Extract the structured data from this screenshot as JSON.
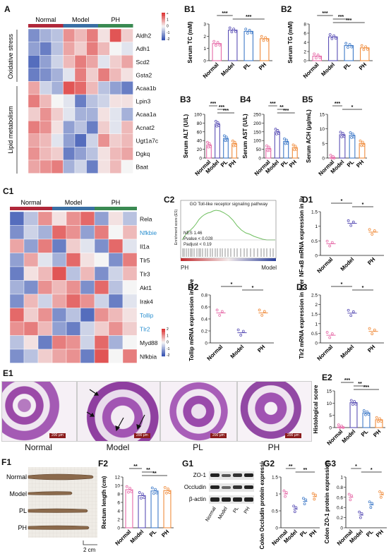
{
  "panels": {
    "A": "A",
    "B1": "B1",
    "B2": "B2",
    "B3": "B3",
    "B4": "B4",
    "B5": "B5",
    "C1": "C1",
    "C2": "C2",
    "D1": "D1",
    "D2": "D2",
    "D3": "D3",
    "E1": "E1",
    "E2": "E2",
    "F1": "F1",
    "F2": "F2",
    "G1": "G1",
    "G2": "G2",
    "G3": "G3"
  },
  "groups3": [
    "Normal",
    "Model",
    "PH"
  ],
  "groups4": [
    "Normal",
    "Model",
    "PL",
    "PH"
  ],
  "heatmapA": {
    "genes": [
      "Aldh2",
      "Adh1",
      "Scd2",
      "Gsta2",
      "Acaa1b",
      "Lpin3",
      "Acaa1a",
      "Acnat2",
      "Ugt1a7c",
      "Dgkq",
      "Baat"
    ],
    "row_groups": [
      "Oxidative stress",
      "Lipid metabolism"
    ],
    "legend": [
      "2",
      "1",
      "0",
      "-1",
      "-2"
    ],
    "values": [
      [
        -1.2,
        -0.8,
        -0.6,
        1.0,
        0.6,
        1.2,
        0.2,
        1.6,
        0.4
      ],
      [
        -1.0,
        -1.4,
        -0.6,
        0.8,
        0.4,
        1.2,
        0.6,
        0.0,
        -0.2
      ],
      [
        -1.6,
        -1.0,
        -0.4,
        0.6,
        1.2,
        0.8,
        -0.2,
        0.4,
        0.8
      ],
      [
        -1.4,
        -1.2,
        -0.8,
        -0.2,
        1.2,
        0.4,
        1.2,
        0.6,
        0.2
      ],
      [
        0.8,
        -0.4,
        -0.8,
        1.6,
        1.4,
        0.6,
        -0.6,
        -1.0,
        -1.4
      ],
      [
        1.2,
        0.6,
        0.0,
        -0.2,
        -1.4,
        -0.6,
        -0.4,
        0.2,
        0.2
      ],
      [
        0.4,
        1.0,
        0.4,
        -0.2,
        -0.8,
        -0.8,
        0.2,
        -0.2,
        -0.8
      ],
      [
        1.2,
        1.0,
        0.2,
        -1.0,
        -0.6,
        -1.4,
        0.4,
        -0.2,
        0.6
      ],
      [
        0.8,
        0.6,
        -0.2,
        -1.0,
        -1.6,
        -0.4,
        1.0,
        0.4,
        0.6
      ],
      [
        1.0,
        0.6,
        0.4,
        -1.4,
        -1.0,
        -0.6,
        0.2,
        0.6,
        0.8
      ],
      [
        0.8,
        1.0,
        1.2,
        -0.8,
        -0.4,
        -1.4,
        0.2,
        0.6,
        0.0
      ]
    ]
  },
  "heatmapC": {
    "genes": [
      "Rela",
      "Nfkbie",
      "Il1a",
      "Tlr5",
      "Tlr3",
      "Akt1",
      "Irak4",
      "Tollip",
      "Tlr2",
      "Myd88",
      "Nfkbia"
    ],
    "highlight": [
      "Nfkbie",
      "Tollip",
      "Tlr2"
    ],
    "legend": [
      "2",
      "1",
      "0",
      "-1",
      "-2"
    ],
    "values": [
      [
        -1.6,
        -0.6,
        1.0,
        0.2,
        1.0,
        1.4,
        -1.0,
        0.2,
        -0.6
      ],
      [
        -1.2,
        -0.4,
        -0.8,
        1.4,
        1.0,
        -1.0,
        1.2,
        0.0,
        0.6
      ],
      [
        0.8,
        -1.0,
        1.2,
        -1.4,
        0.4,
        -0.2,
        -1.2,
        1.4,
        -0.2
      ],
      [
        -1.0,
        0.8,
        -0.2,
        -0.8,
        1.4,
        0.2,
        0.0,
        -1.2,
        1.2
      ],
      [
        -1.4,
        0.2,
        0.6,
        1.6,
        -0.6,
        0.6,
        -1.2,
        -0.4,
        0.6
      ],
      [
        -0.8,
        -1.2,
        1.0,
        0.6,
        1.0,
        -1.2,
        1.4,
        -0.6,
        0.0
      ],
      [
        -1.2,
        0.6,
        -0.4,
        0.8,
        1.4,
        1.0,
        -0.4,
        -1.4,
        -0.2
      ],
      [
        1.4,
        0.4,
        1.0,
        -1.2,
        -0.6,
        -1.6,
        1.0,
        0.6,
        0.2
      ],
      [
        1.0,
        1.2,
        0.6,
        -1.0,
        -1.4,
        -0.4,
        0.4,
        1.0,
        0.4
      ],
      [
        -0.6,
        0.2,
        -1.4,
        1.2,
        1.0,
        -0.4,
        1.4,
        -0.8,
        0.0
      ],
      [
        -1.2,
        -0.6,
        0.4,
        0.8,
        1.0,
        -1.4,
        1.6,
        0.0,
        1.2
      ]
    ]
  },
  "gsea": {
    "title": "GO Toll-like receptor signaling pathway",
    "ylabel": "Enrichment score (ES)",
    "nes": "NES 1.46",
    "pvalue": "Pvalue < 0.028",
    "padjust": "Padjust < 0.19",
    "left": "PH",
    "right": "Model"
  },
  "chart_data": [
    {
      "id": "B1",
      "type": "bar",
      "ylabel": "Serum TC (mM)",
      "categories": [
        "Normal",
        "Model",
        "PL",
        "PH"
      ],
      "values": [
        1.4,
        2.5,
        2.4,
        1.8
      ],
      "ylim": [
        0,
        3
      ],
      "ticks": [
        0,
        1,
        2,
        3
      ],
      "sig": [
        {
          "a": 0,
          "b": 1,
          "t": "***"
        },
        {
          "a": 1,
          "b": 3,
          "t": "***"
        }
      ]
    },
    {
      "id": "B2",
      "type": "bar",
      "ylabel": "Serum TG (mM)",
      "categories": [
        "Normal",
        "Model",
        "PL",
        "PH"
      ],
      "values": [
        1.0,
        5.2,
        3.3,
        2.8
      ],
      "ylim": [
        0,
        8
      ],
      "ticks": [
        0,
        2,
        4,
        6,
        8
      ],
      "sig": [
        {
          "a": 0,
          "b": 1,
          "t": "***"
        },
        {
          "a": 1,
          "b": 2,
          "t": "***"
        },
        {
          "a": 1,
          "b": 3,
          "t": "***"
        }
      ]
    },
    {
      "id": "B3",
      "type": "bar",
      "ylabel": "Serum ALT (U/L)",
      "categories": [
        "Normal",
        "Model",
        "PL",
        "PH"
      ],
      "values": [
        30,
        78,
        45,
        33
      ],
      "ylim": [
        0,
        100
      ],
      "ticks": [
        0,
        20,
        40,
        60,
        80,
        100
      ],
      "sig": [
        {
          "a": 0,
          "b": 1,
          "t": "***"
        },
        {
          "a": 1,
          "b": 2,
          "t": "***"
        },
        {
          "a": 1,
          "b": 3,
          "t": "***"
        }
      ]
    },
    {
      "id": "B4",
      "type": "bar",
      "ylabel": "Serum AST (U/L)",
      "categories": [
        "Normal",
        "Model",
        "PL",
        "PH"
      ],
      "values": [
        55,
        150,
        95,
        60
      ],
      "ylim": [
        0,
        250
      ],
      "ticks": [
        0,
        50,
        100,
        150,
        200,
        250
      ],
      "sig": [
        {
          "a": 0,
          "b": 1,
          "t": "***"
        },
        {
          "a": 1,
          "b": 2,
          "t": "**"
        },
        {
          "a": 1,
          "b": 3,
          "t": "***"
        }
      ]
    },
    {
      "id": "B5",
      "type": "bar",
      "ylabel": "Serum ACH (μg/mL)",
      "categories": [
        "Normal",
        "Model",
        "PL",
        "PH"
      ],
      "values": [
        0.1,
        8.0,
        7.8,
        5.0
      ],
      "ylim": [
        0,
        15
      ],
      "ticks": [
        0,
        5,
        10,
        15
      ],
      "sig": [
        {
          "a": 0,
          "b": 1,
          "t": "***"
        },
        {
          "a": 1,
          "b": 3,
          "t": "*"
        }
      ]
    },
    {
      "id": "D1",
      "type": "scatter",
      "ylabel": "NF-κB mRNA expression in liver",
      "categories": [
        "Normal",
        "Model",
        "PH"
      ],
      "values": [
        0.4,
        1.1,
        0.8
      ],
      "ylim": [
        0,
        1.5
      ],
      "ticks": [
        0.0,
        0.5,
        1.0,
        1.5
      ],
      "sig": [
        {
          "a": 0,
          "b": 1,
          "t": "*"
        },
        {
          "a": 1,
          "b": 2,
          "t": "*"
        }
      ]
    },
    {
      "id": "D2",
      "type": "scatter",
      "ylabel": "Tollip mRNA expression in liver",
      "categories": [
        "Normal",
        "Model",
        "PH"
      ],
      "values": [
        0.5,
        0.17,
        0.5
      ],
      "ylim": [
        0,
        0.8
      ],
      "ticks": [
        0.0,
        0.2,
        0.4,
        0.6,
        0.8
      ],
      "sig": [
        {
          "a": 0,
          "b": 1,
          "t": "*"
        },
        {
          "a": 1,
          "b": 2,
          "t": "*"
        }
      ]
    },
    {
      "id": "D3",
      "type": "scatter",
      "ylabel": "Tlr2 mRNA expression in liver",
      "categories": [
        "Normal",
        "Model",
        "PH"
      ],
      "values": [
        0.4,
        1.55,
        0.6
      ],
      "ylim": [
        0,
        2.5
      ],
      "ticks": [
        0.0,
        0.5,
        1.0,
        1.5,
        2.0,
        2.5
      ],
      "sig": [
        {
          "a": 0,
          "b": 1,
          "t": "*"
        },
        {
          "a": 1,
          "b": 2,
          "t": "*"
        }
      ]
    },
    {
      "id": "E2",
      "type": "bar",
      "ylabel": "Histological score",
      "categories": [
        "Normal",
        "Model",
        "PL",
        "PH"
      ],
      "values": [
        0.2,
        10.2,
        6.0,
        3.2
      ],
      "ylim": [
        0,
        15
      ],
      "ticks": [
        0,
        5,
        10,
        15
      ],
      "sig": [
        {
          "a": 0,
          "b": 1,
          "t": "***"
        },
        {
          "a": 1,
          "b": 2,
          "t": "**"
        },
        {
          "a": 1,
          "b": 3,
          "t": "***"
        }
      ]
    },
    {
      "id": "F2",
      "type": "bar",
      "ylabel": "Rectum length (cm)",
      "categories": [
        "Normal",
        "Model",
        "PL",
        "PH"
      ],
      "values": [
        9.0,
        7.6,
        8.7,
        8.8
      ],
      "ylim": [
        0,
        12
      ],
      "ticks": [
        0,
        2,
        4,
        6,
        8,
        10,
        12
      ],
      "sig": [
        {
          "a": 0,
          "b": 1,
          "t": "**"
        },
        {
          "a": 1,
          "b": 2,
          "t": "**"
        },
        {
          "a": 1,
          "b": 3,
          "t": "**"
        }
      ]
    },
    {
      "id": "G2",
      "type": "scatter",
      "ylabel": "Colon Occludin protein expression",
      "categories": [
        "Normal",
        "Model",
        "PL",
        "PH"
      ],
      "values": [
        1.0,
        0.55,
        0.78,
        0.92
      ],
      "ylim": [
        0,
        1.5
      ],
      "ticks": [
        0.0,
        0.5,
        1.0,
        1.5
      ],
      "sig": [
        {
          "a": 0,
          "b": 1,
          "t": "**"
        },
        {
          "a": 1,
          "b": 3,
          "t": "**"
        }
      ]
    },
    {
      "id": "G3",
      "type": "scatter",
      "ylabel": "Colon ZO-1 protein expression",
      "categories": [
        "Normal",
        "Model",
        "PL",
        "PH"
      ],
      "values": [
        0.6,
        0.25,
        0.45,
        0.65
      ],
      "ylim": [
        0,
        1.0
      ],
      "ticks": [
        0.0,
        0.2,
        0.4,
        0.6,
        0.8,
        1.0
      ],
      "sig": [
        {
          "a": 0,
          "b": 1,
          "t": "*"
        },
        {
          "a": 1,
          "b": 3,
          "t": "*"
        }
      ]
    }
  ],
  "histology": {
    "labels": [
      "Normal",
      "Model",
      "PL",
      "PH"
    ],
    "scale": "200 μm"
  },
  "colon": {
    "labels": [
      "Normal",
      "Model",
      "PL",
      "PH"
    ],
    "scale": "2 cm"
  },
  "western": {
    "labels": [
      "ZO-1",
      "Occludin",
      "β-actin"
    ],
    "lanes": [
      "Normal",
      "Model",
      "PL",
      "PH"
    ]
  },
  "colors": {
    "Normal": "#e66aa8",
    "Model": "#5a4fb5",
    "PL": "#3f7ac8",
    "PH": "#f08c3c",
    "bar_normal": "#b0283a",
    "bar_model": "#3a6fa4",
    "bar_ph": "#3a8a52",
    "sidebar_fill": "#de6a6a"
  }
}
